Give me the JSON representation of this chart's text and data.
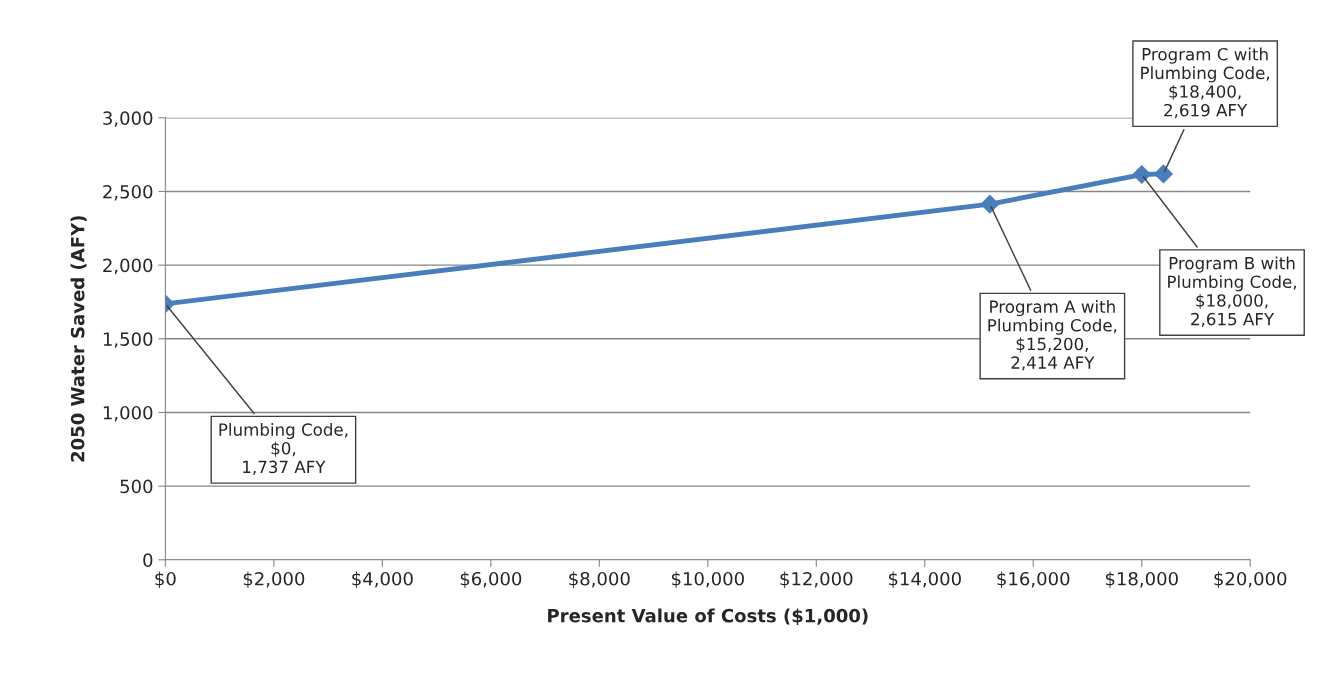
{
  "chart_data": {
    "type": "line",
    "xlabel": "Present Value of Costs ($1,000)",
    "ylabel": "2050 Water Saved (AFY)",
    "x": [
      0,
      15200,
      18000,
      18400
    ],
    "series": [
      {
        "color": "#4a7ebb",
        "values": [
          1737,
          2414,
          2615,
          2619
        ]
      }
    ],
    "marker": "diamond",
    "line_style": "solid",
    "grid": "y",
    "xlim": [
      0,
      20000
    ],
    "xticks": [
      {
        "value": 0,
        "label": "$0"
      },
      {
        "value": 2000,
        "label": "$2,000"
      },
      {
        "value": 4000,
        "label": "$4,000"
      },
      {
        "value": 6000,
        "label": "$6,000"
      },
      {
        "value": 8000,
        "label": "$8,000"
      },
      {
        "value": 10000,
        "label": "$10,000"
      },
      {
        "value": 12000,
        "label": "$12,000"
      },
      {
        "value": 14000,
        "label": "$14,000"
      },
      {
        "value": 16000,
        "label": "$16,000"
      },
      {
        "value": 18000,
        "label": "$18,000"
      },
      {
        "value": 20000,
        "label": "$20,000"
      }
    ],
    "ylim": [
      0,
      3000
    ],
    "yticks": [
      {
        "value": 0,
        "label": "0"
      },
      {
        "value": 500,
        "label": "500"
      },
      {
        "value": 1000,
        "label": "1,000"
      },
      {
        "value": 1500,
        "label": "1,500"
      },
      {
        "value": 2000,
        "label": "2,000"
      },
      {
        "value": 2500,
        "label": "2,500"
      },
      {
        "value": 3000,
        "label": "3,000"
      }
    ],
    "annotations": [
      {
        "text": "Plumbing Code,\n$0,\n1,737 AFY",
        "x": 0,
        "y": 1737
      },
      {
        "text": "Program A with\nPlumbing Code,\n$15,200,\n2,414 AFY",
        "x": 15200,
        "y": 2414
      },
      {
        "text": "Program B with\nPlumbing Code,\n$18,000,\n2,615 AFY",
        "x": 18000,
        "y": 2615
      },
      {
        "text": "Program C with\nPlumbing Code,\n$18,400,\n2,619 AFY",
        "x": 18400,
        "y": 2619
      }
    ]
  }
}
